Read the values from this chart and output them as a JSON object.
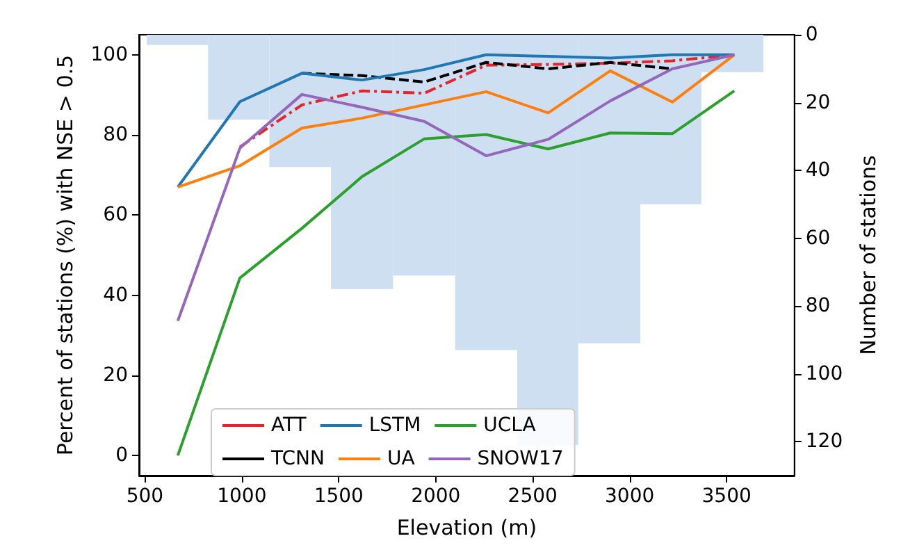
{
  "chart_data": {
    "type": "line",
    "xlabel": "Elevation (m)",
    "ylabel": "Percent of stations (%) with NSE > 0.5",
    "y2label": "Number of stations",
    "x": [
      670,
      990,
      1310,
      1620,
      1940,
      2260,
      2580,
      2900,
      3220,
      3540
    ],
    "xlim": [
      470,
      3850
    ],
    "xticks": [
      500,
      1000,
      1500,
      2000,
      2500,
      3000,
      3500
    ],
    "ylim": [
      -5,
      105
    ],
    "yticks": [
      0,
      20,
      40,
      60,
      80,
      100
    ],
    "y2lim": [
      130,
      0
    ],
    "y2ticks": [
      0,
      20,
      40,
      60,
      80,
      100,
      120
    ],
    "grid": false,
    "legend": "bottom",
    "marker": "none",
    "series": [
      {
        "type": "histogram",
        "axis": "y2",
        "color": "#cddff0",
        "bins": [
          510,
          826,
          1142,
          1460,
          1780,
          2100,
          2420,
          2735,
          3055,
          3370,
          3690
        ],
        "values": [
          3,
          25,
          39,
          75,
          71,
          93,
          121,
          91,
          50,
          11
        ]
      },
      {
        "name": "ATT",
        "color": "#e3242b",
        "line_style": "dashdot",
        "values": [
          null,
          77,
          87.5,
          91,
          90.4,
          97.4,
          97.6,
          97.9,
          98.5,
          100
        ]
      },
      {
        "name": "TCNN",
        "color": "#000000",
        "line_style": "dashed",
        "values": [
          null,
          null,
          95.4,
          94.8,
          93.2,
          98.1,
          96.5,
          98.1,
          96.5,
          null
        ]
      },
      {
        "name": "LSTM",
        "color": "#1f77b4",
        "line_style": "solid",
        "values": [
          67,
          88.3,
          95.4,
          93.7,
          96.3,
          100,
          99.6,
          99.2,
          100,
          100
        ]
      },
      {
        "name": "UA",
        "color": "#ff7f0e",
        "line_style": "solid",
        "values": [
          67,
          72.3,
          81.7,
          84.2,
          87.5,
          90.8,
          85.5,
          96,
          88.2,
          100
        ]
      },
      {
        "name": "UCLA",
        "color": "#2ca02c",
        "line_style": "solid",
        "values": [
          0,
          44.3,
          56.7,
          69.6,
          79,
          80.1,
          76.5,
          80.5,
          80.3,
          91
        ]
      },
      {
        "name": "SNOW17",
        "color": "#9467bd",
        "line_style": "solid",
        "values": [
          33.6,
          76.7,
          90.1,
          86.9,
          83.4,
          74.8,
          78.9,
          88.5,
          96.5,
          100
        ]
      }
    ]
  }
}
